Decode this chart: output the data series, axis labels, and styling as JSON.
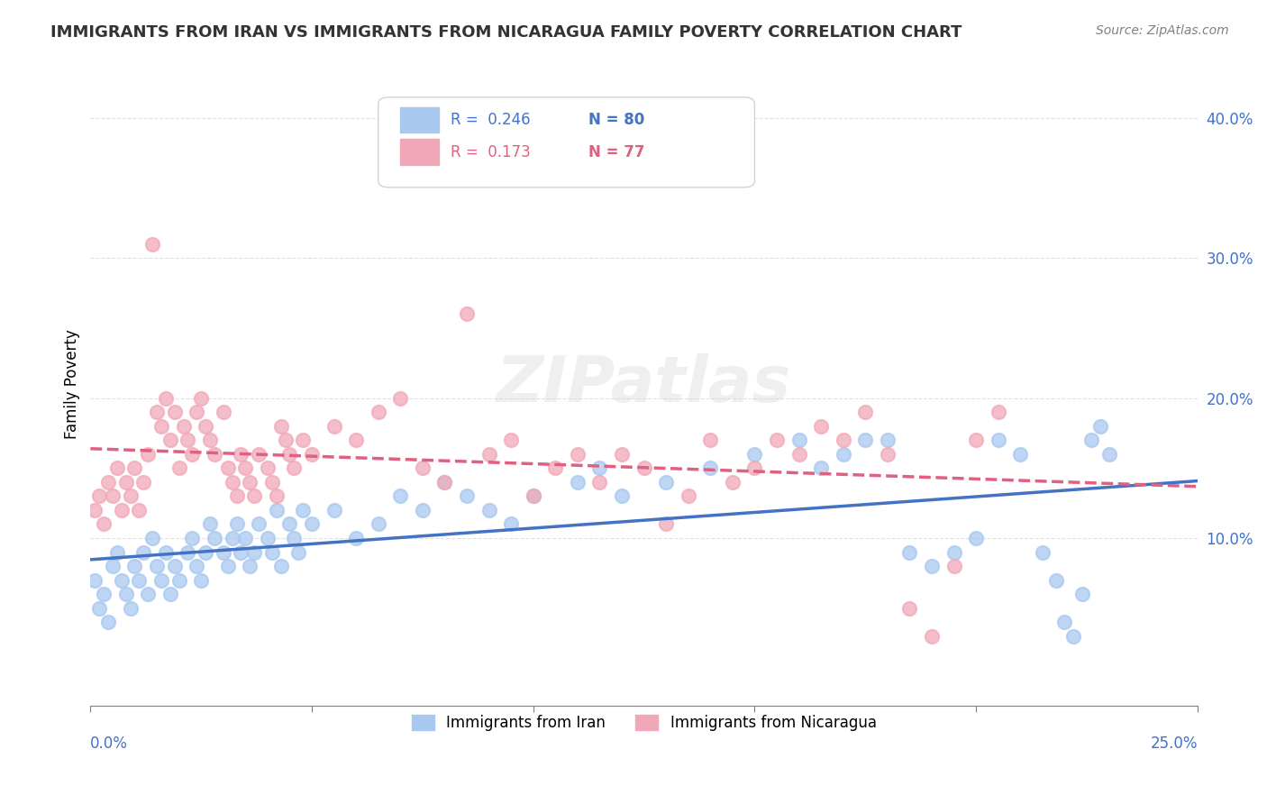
{
  "title": "IMMIGRANTS FROM IRAN VS IMMIGRANTS FROM NICARAGUA FAMILY POVERTY CORRELATION CHART",
  "source": "Source: ZipAtlas.com",
  "ylabel": "Family Poverty",
  "xlim": [
    0.0,
    0.25
  ],
  "ylim": [
    -0.02,
    0.44
  ],
  "iran_R": 0.246,
  "iran_N": 80,
  "nicaragua_R": 0.173,
  "nicaragua_N": 77,
  "iran_color": "#a8c8f0",
  "nicaragua_color": "#f0a8b8",
  "iran_line_color": "#4472c4",
  "nicaragua_line_color": "#e06080",
  "iran_scatter": [
    [
      0.001,
      0.07
    ],
    [
      0.002,
      0.05
    ],
    [
      0.003,
      0.06
    ],
    [
      0.004,
      0.04
    ],
    [
      0.005,
      0.08
    ],
    [
      0.006,
      0.09
    ],
    [
      0.007,
      0.07
    ],
    [
      0.008,
      0.06
    ],
    [
      0.009,
      0.05
    ],
    [
      0.01,
      0.08
    ],
    [
      0.011,
      0.07
    ],
    [
      0.012,
      0.09
    ],
    [
      0.013,
      0.06
    ],
    [
      0.014,
      0.1
    ],
    [
      0.015,
      0.08
    ],
    [
      0.016,
      0.07
    ],
    [
      0.017,
      0.09
    ],
    [
      0.018,
      0.06
    ],
    [
      0.019,
      0.08
    ],
    [
      0.02,
      0.07
    ],
    [
      0.022,
      0.09
    ],
    [
      0.023,
      0.1
    ],
    [
      0.024,
      0.08
    ],
    [
      0.025,
      0.07
    ],
    [
      0.026,
      0.09
    ],
    [
      0.027,
      0.11
    ],
    [
      0.028,
      0.1
    ],
    [
      0.03,
      0.09
    ],
    [
      0.031,
      0.08
    ],
    [
      0.032,
      0.1
    ],
    [
      0.033,
      0.11
    ],
    [
      0.034,
      0.09
    ],
    [
      0.035,
      0.1
    ],
    [
      0.036,
      0.08
    ],
    [
      0.037,
      0.09
    ],
    [
      0.038,
      0.11
    ],
    [
      0.04,
      0.1
    ],
    [
      0.041,
      0.09
    ],
    [
      0.042,
      0.12
    ],
    [
      0.043,
      0.08
    ],
    [
      0.045,
      0.11
    ],
    [
      0.046,
      0.1
    ],
    [
      0.047,
      0.09
    ],
    [
      0.048,
      0.12
    ],
    [
      0.05,
      0.11
    ],
    [
      0.055,
      0.12
    ],
    [
      0.06,
      0.1
    ],
    [
      0.065,
      0.11
    ],
    [
      0.07,
      0.13
    ],
    [
      0.075,
      0.12
    ],
    [
      0.08,
      0.14
    ],
    [
      0.085,
      0.13
    ],
    [
      0.09,
      0.12
    ],
    [
      0.095,
      0.11
    ],
    [
      0.1,
      0.13
    ],
    [
      0.11,
      0.14
    ],
    [
      0.115,
      0.15
    ],
    [
      0.12,
      0.13
    ],
    [
      0.13,
      0.14
    ],
    [
      0.14,
      0.15
    ],
    [
      0.15,
      0.16
    ],
    [
      0.16,
      0.17
    ],
    [
      0.165,
      0.15
    ],
    [
      0.17,
      0.16
    ],
    [
      0.175,
      0.17
    ],
    [
      0.18,
      0.17
    ],
    [
      0.185,
      0.09
    ],
    [
      0.19,
      0.08
    ],
    [
      0.195,
      0.09
    ],
    [
      0.2,
      0.1
    ],
    [
      0.205,
      0.17
    ],
    [
      0.21,
      0.16
    ],
    [
      0.215,
      0.09
    ],
    [
      0.218,
      0.07
    ],
    [
      0.22,
      0.04
    ],
    [
      0.222,
      0.03
    ],
    [
      0.224,
      0.06
    ],
    [
      0.226,
      0.17
    ],
    [
      0.228,
      0.18
    ],
    [
      0.23,
      0.16
    ]
  ],
  "nicaragua_scatter": [
    [
      0.001,
      0.12
    ],
    [
      0.002,
      0.13
    ],
    [
      0.003,
      0.11
    ],
    [
      0.004,
      0.14
    ],
    [
      0.005,
      0.13
    ],
    [
      0.006,
      0.15
    ],
    [
      0.007,
      0.12
    ],
    [
      0.008,
      0.14
    ],
    [
      0.009,
      0.13
    ],
    [
      0.01,
      0.15
    ],
    [
      0.011,
      0.12
    ],
    [
      0.012,
      0.14
    ],
    [
      0.013,
      0.16
    ],
    [
      0.014,
      0.31
    ],
    [
      0.015,
      0.19
    ],
    [
      0.016,
      0.18
    ],
    [
      0.017,
      0.2
    ],
    [
      0.018,
      0.17
    ],
    [
      0.019,
      0.19
    ],
    [
      0.02,
      0.15
    ],
    [
      0.021,
      0.18
    ],
    [
      0.022,
      0.17
    ],
    [
      0.023,
      0.16
    ],
    [
      0.024,
      0.19
    ],
    [
      0.025,
      0.2
    ],
    [
      0.026,
      0.18
    ],
    [
      0.027,
      0.17
    ],
    [
      0.028,
      0.16
    ],
    [
      0.03,
      0.19
    ],
    [
      0.031,
      0.15
    ],
    [
      0.032,
      0.14
    ],
    [
      0.033,
      0.13
    ],
    [
      0.034,
      0.16
    ],
    [
      0.035,
      0.15
    ],
    [
      0.036,
      0.14
    ],
    [
      0.037,
      0.13
    ],
    [
      0.038,
      0.16
    ],
    [
      0.04,
      0.15
    ],
    [
      0.041,
      0.14
    ],
    [
      0.042,
      0.13
    ],
    [
      0.043,
      0.18
    ],
    [
      0.044,
      0.17
    ],
    [
      0.045,
      0.16
    ],
    [
      0.046,
      0.15
    ],
    [
      0.048,
      0.17
    ],
    [
      0.05,
      0.16
    ],
    [
      0.055,
      0.18
    ],
    [
      0.06,
      0.17
    ],
    [
      0.065,
      0.19
    ],
    [
      0.07,
      0.2
    ],
    [
      0.075,
      0.15
    ],
    [
      0.08,
      0.14
    ],
    [
      0.085,
      0.26
    ],
    [
      0.09,
      0.16
    ],
    [
      0.095,
      0.17
    ],
    [
      0.1,
      0.13
    ],
    [
      0.105,
      0.15
    ],
    [
      0.11,
      0.16
    ],
    [
      0.115,
      0.14
    ],
    [
      0.12,
      0.16
    ],
    [
      0.125,
      0.15
    ],
    [
      0.13,
      0.11
    ],
    [
      0.135,
      0.13
    ],
    [
      0.14,
      0.17
    ],
    [
      0.145,
      0.14
    ],
    [
      0.15,
      0.15
    ],
    [
      0.155,
      0.17
    ],
    [
      0.16,
      0.16
    ],
    [
      0.165,
      0.18
    ],
    [
      0.17,
      0.17
    ],
    [
      0.175,
      0.19
    ],
    [
      0.18,
      0.16
    ],
    [
      0.185,
      0.05
    ],
    [
      0.19,
      0.03
    ],
    [
      0.195,
      0.08
    ],
    [
      0.2,
      0.17
    ],
    [
      0.205,
      0.19
    ]
  ],
  "watermark": "ZIPatlas"
}
